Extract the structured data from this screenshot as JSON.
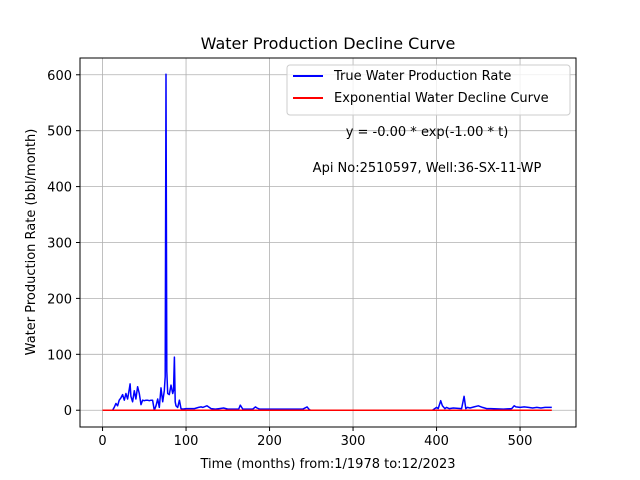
{
  "colors": {
    "true_rate": "#0000ff",
    "decline": "#ff0000",
    "grid": "#b0b0b0",
    "axes": "#000000"
  },
  "chart_data": {
    "type": "line",
    "title": "Water Production Decline Curve",
    "xlabel": "Time (months) from:1/1978 to:12/2023",
    "ylabel": "Water Production Rate (bbl/month)",
    "xlim": [
      -27,
      567
    ],
    "ylim": [
      -30,
      630
    ],
    "xticks": [
      0,
      100,
      200,
      300,
      400,
      500
    ],
    "yticks": [
      0,
      100,
      200,
      300,
      400,
      500,
      600
    ],
    "grid": true,
    "legend_position": "top-right",
    "annotations": [
      "y = -0.00 * exp(-1.00 * t)",
      "Api No:2510597, Well:36-SX-11-WP"
    ],
    "series": [
      {
        "name": "True Water Production Rate",
        "color": "#0000ff",
        "x": [
          0,
          12,
          14,
          16,
          18,
          20,
          22,
          24,
          26,
          28,
          30,
          32,
          33,
          34,
          36,
          38,
          40,
          42,
          44,
          46,
          48,
          50,
          52,
          54,
          56,
          58,
          60,
          62,
          64,
          66,
          68,
          70,
          72,
          74,
          75,
          76,
          77,
          78,
          80,
          82,
          84,
          85,
          86,
          87,
          88,
          90,
          92,
          94,
          96,
          100,
          110,
          115,
          118,
          120,
          125,
          130,
          135,
          140,
          145,
          150,
          155,
          160,
          163,
          165,
          168,
          175,
          180,
          183,
          185,
          188,
          195,
          200,
          210,
          240,
          245,
          247,
          249,
          260,
          300,
          350,
          395,
          400,
          402,
          405,
          407,
          410,
          412,
          415,
          420,
          430,
          433,
          435,
          437,
          440,
          445,
          450,
          455,
          460,
          465,
          480,
          490,
          493,
          495,
          500,
          505,
          510,
          515,
          520,
          525,
          530,
          535,
          538
        ],
        "y": [
          0,
          0,
          5,
          12,
          8,
          18,
          22,
          28,
          18,
          30,
          20,
          38,
          47,
          25,
          15,
          35,
          20,
          42,
          30,
          10,
          18,
          17,
          18,
          18,
          17,
          18,
          18,
          0,
          8,
          20,
          5,
          40,
          15,
          35,
          60,
          601,
          70,
          30,
          28,
          45,
          30,
          35,
          95,
          15,
          8,
          5,
          18,
          3,
          2,
          3,
          3,
          5,
          6,
          5,
          8,
          3,
          2,
          3,
          4,
          2,
          2,
          2,
          2,
          9,
          2,
          2,
          2,
          6,
          4,
          2,
          2,
          2,
          2,
          2,
          6,
          2,
          0,
          0,
          0,
          0,
          0,
          5,
          3,
          17,
          8,
          3,
          5,
          3,
          4,
          3,
          25,
          3,
          5,
          4,
          6,
          8,
          5,
          3,
          3,
          2,
          3,
          8,
          6,
          5,
          6,
          5,
          4,
          5,
          4,
          5,
          5,
          5
        ]
      },
      {
        "name": "Exponential Water Decline Curve",
        "color": "#ff0000",
        "x": [
          0,
          538
        ],
        "y": [
          0,
          0
        ]
      }
    ]
  }
}
